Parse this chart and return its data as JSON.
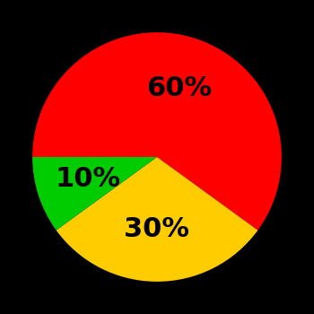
{
  "slices": [
    60,
    30,
    10
  ],
  "colors": [
    "#ff0000",
    "#ffcc00",
    "#00cc00"
  ],
  "labels": [
    "60%",
    "30%",
    "10%"
  ],
  "background_color": "#000000",
  "text_color": "#000000",
  "startangle": 180,
  "fontsize": 22,
  "fontweight": "bold",
  "label_r": 0.58
}
